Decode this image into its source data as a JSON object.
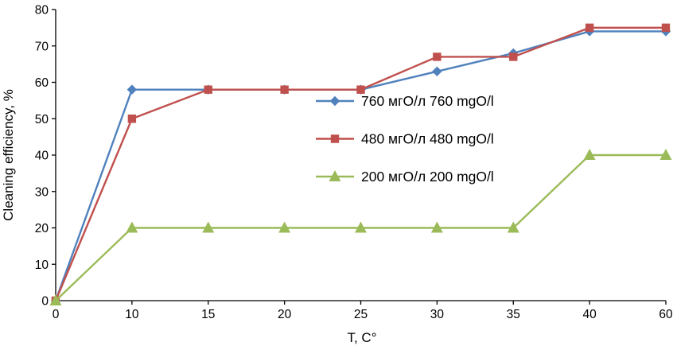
{
  "chart_data": {
    "type": "line",
    "title": "",
    "xlabel": "T, C°",
    "ylabel": "Cleaning efficiency, %",
    "x_categories": [
      "0",
      "10",
      "15",
      "20",
      "25",
      "30",
      "35",
      "40",
      "60"
    ],
    "ylim": [
      0,
      80
    ],
    "ytick_step": 10,
    "grid": false,
    "legend_position": "inside-right",
    "series": [
      {
        "name": "760 мгО/л 760 mgO/l",
        "color": "#4F81BD",
        "marker": "diamond",
        "values": [
          0,
          58,
          58,
          58,
          58,
          63,
          68,
          74,
          74
        ]
      },
      {
        "name": "480 мгО/л 480 mgO/l",
        "color": "#C0504D",
        "marker": "square",
        "values": [
          0,
          50,
          58,
          58,
          58,
          67,
          67,
          75,
          75
        ]
      },
      {
        "name": "200 мгО/л 200 mgO/l",
        "color": "#9BBB59",
        "marker": "triangle",
        "values": [
          0,
          20,
          20,
          20,
          20,
          20,
          20,
          40,
          40
        ]
      }
    ]
  }
}
